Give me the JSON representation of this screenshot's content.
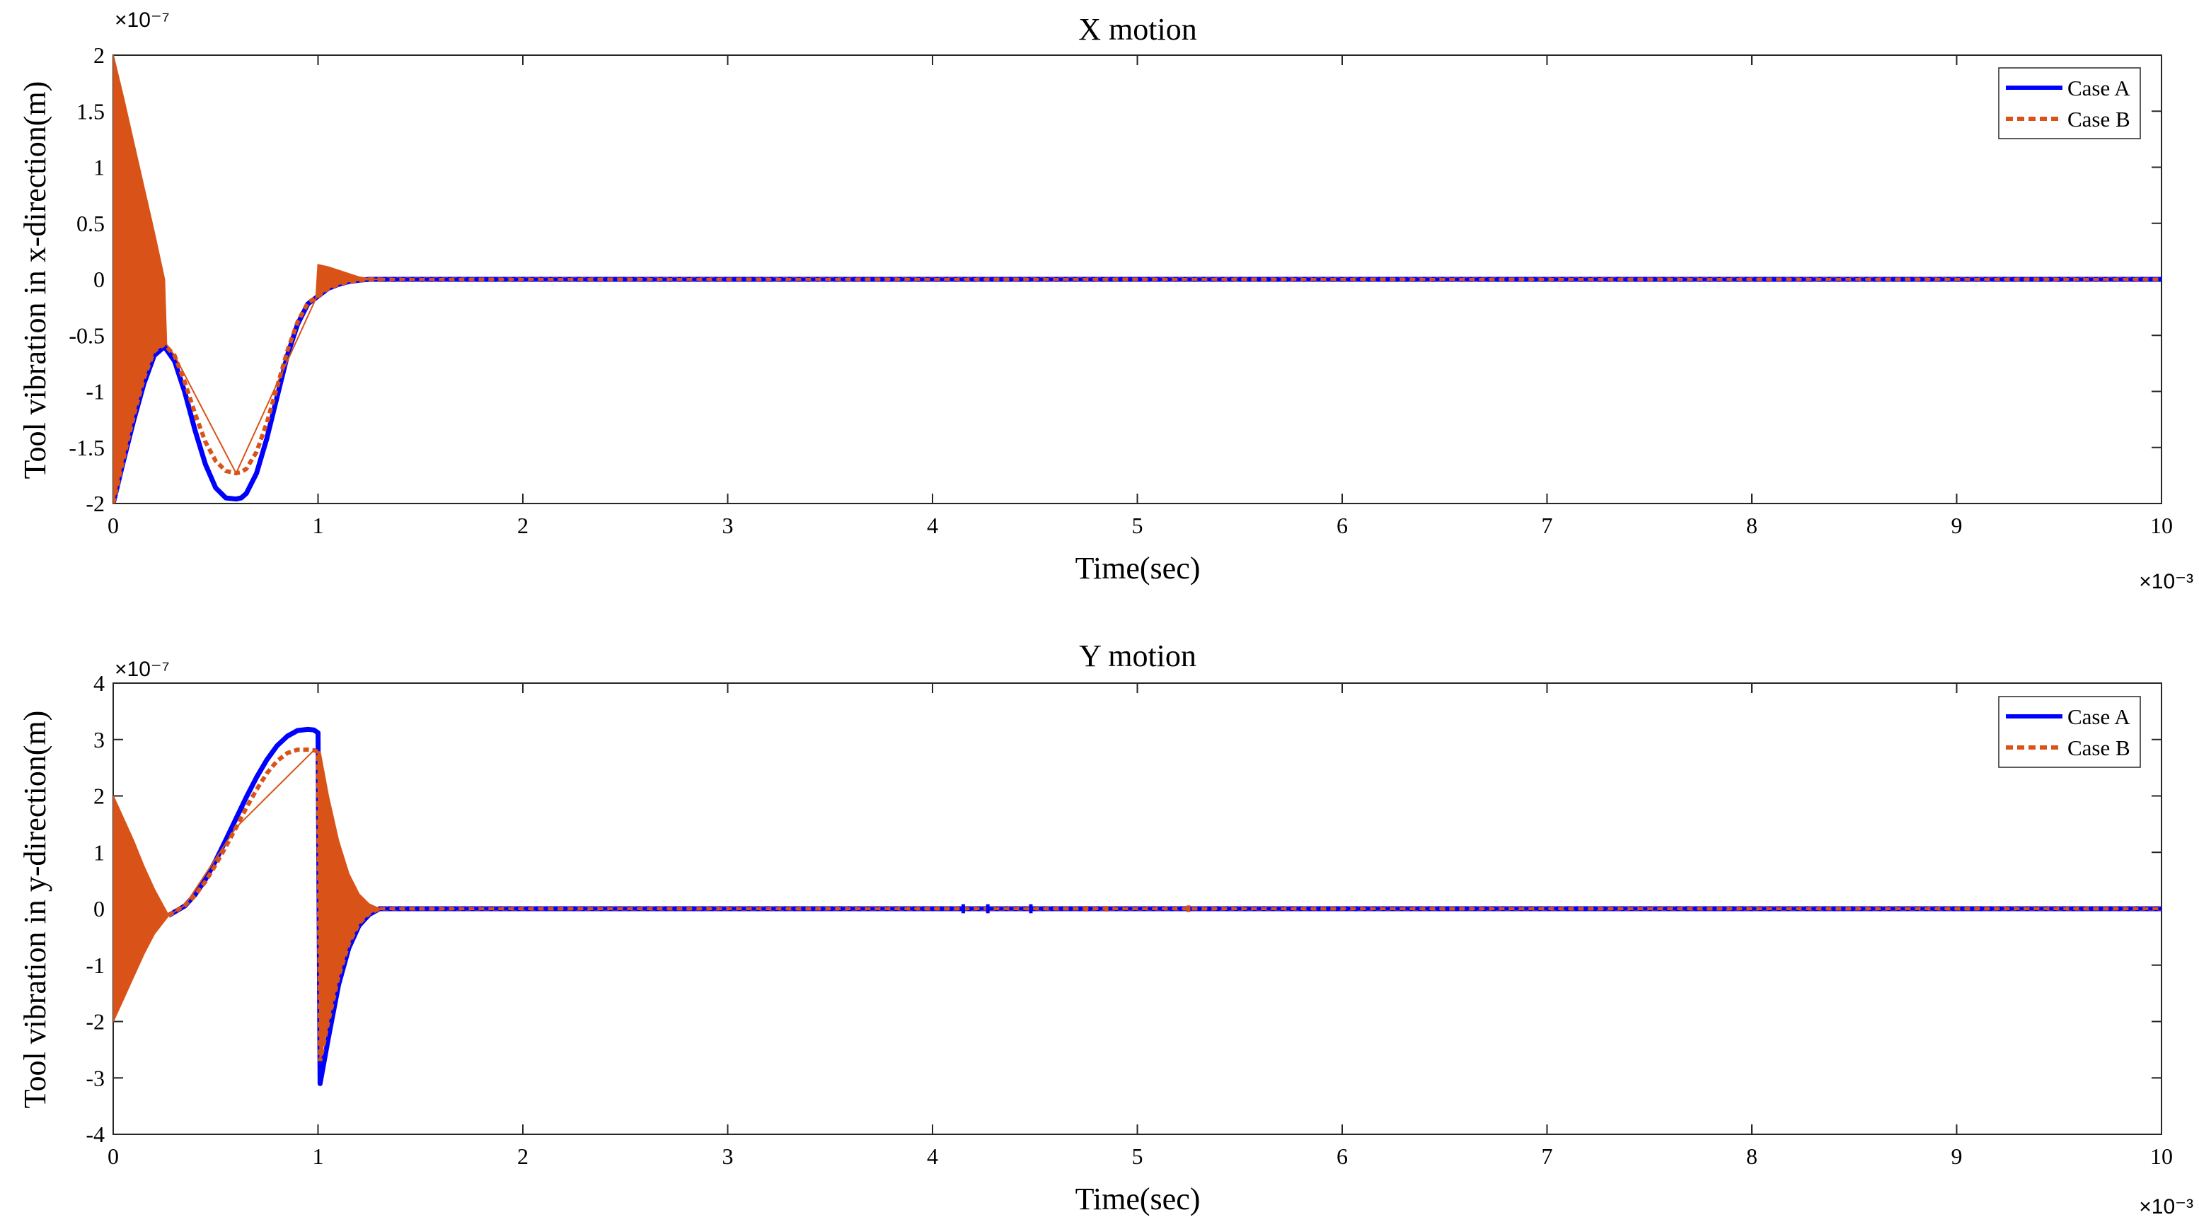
{
  "chart_data": [
    {
      "type": "line",
      "title": "X motion",
      "xlabel": "Time(sec)",
      "ylabel": "Tool vibration in x-direction(m)",
      "x_exponent_label": "×10⁻³",
      "y_exponent_label": "×10⁻⁷",
      "x_scale": 0.001,
      "y_scale": 1e-07,
      "xlim": [
        0,
        10
      ],
      "ylim": [
        -2,
        2
      ],
      "xticks": [
        0,
        1,
        2,
        3,
        4,
        5,
        6,
        7,
        8,
        9,
        10
      ],
      "yticks": [
        -2,
        -1.5,
        -1,
        -0.5,
        0,
        0.5,
        1,
        1.5,
        2
      ],
      "xtick_labels": [
        "0",
        "1",
        "2",
        "3",
        "4",
        "5",
        "6",
        "7",
        "8",
        "9",
        "10"
      ],
      "ytick_labels": [
        "-2",
        "-1.5",
        "-1",
        "-0.5",
        "0",
        "0.5",
        "1",
        "1.5",
        "2"
      ],
      "grid": false,
      "legend_position": "top-right",
      "series": [
        {
          "name": "Case A",
          "color": "#0000ff",
          "style": "solid",
          "x": [
            0,
            0.05,
            0.1,
            0.15,
            0.2,
            0.25,
            0.3,
            0.35,
            0.4,
            0.45,
            0.5,
            0.55,
            0.6,
            0.625,
            0.65,
            0.7,
            0.75,
            0.8,
            0.85,
            0.9,
            0.95,
            1.0,
            1.05,
            1.1,
            1.15,
            1.2,
            1.25,
            1.3,
            2,
            3,
            4,
            5,
            6,
            7,
            8,
            9,
            10
          ],
          "y": [
            -2.0,
            -1.62,
            -1.26,
            -0.93,
            -0.68,
            -0.6,
            -0.73,
            -1.01,
            -1.35,
            -1.65,
            -1.86,
            -1.95,
            -1.96,
            -1.95,
            -1.91,
            -1.73,
            -1.42,
            -1.05,
            -0.68,
            -0.4,
            -0.22,
            -0.15,
            -0.08,
            -0.045,
            -0.02,
            -0.008,
            0.0,
            0.0,
            0.0,
            0.0,
            0.0,
            0.0,
            0.0,
            0.0,
            0.0,
            0.0,
            0.0
          ]
        },
        {
          "name": "Case B",
          "color": "#d95319",
          "style": "dashed",
          "x": [
            0,
            0.05,
            0.1,
            0.15,
            0.2,
            0.25,
            0.3,
            0.35,
            0.4,
            0.45,
            0.5,
            0.55,
            0.6,
            0.625,
            0.65,
            0.7,
            0.75,
            0.8,
            0.85,
            0.9,
            0.95,
            1.0,
            1.05,
            1.1,
            1.15,
            1.2,
            1.25,
            1.3,
            2,
            3,
            4,
            5,
            6,
            7,
            8,
            9,
            10
          ],
          "y": [
            -2.0,
            -1.6,
            -1.22,
            -0.88,
            -0.64,
            -0.58,
            -0.68,
            -0.92,
            -1.2,
            -1.45,
            -1.62,
            -1.71,
            -1.73,
            -1.72,
            -1.69,
            -1.54,
            -1.28,
            -0.96,
            -0.64,
            -0.38,
            -0.21,
            -0.15,
            -0.08,
            -0.045,
            -0.02,
            -0.008,
            0.0,
            0.0,
            0.0,
            0.0,
            0.0,
            0.0,
            0.0,
            0.0,
            0.0,
            0.0,
            0.0
          ]
        }
      ],
      "oscillation_band": {
        "series": "Case B",
        "color": "#d95319",
        "x": [
          0,
          0.05,
          0.1,
          0.15,
          0.2,
          0.25,
          0.26,
          0.3,
          0.6,
          0.99,
          1.0,
          1.05,
          1.1,
          1.15,
          1.2,
          1.25,
          1.3
        ],
        "upper": [
          2.0,
          1.62,
          1.22,
          0.82,
          0.42,
          0.0,
          -0.58,
          -0.68,
          -1.73,
          -0.17,
          0.13,
          0.11,
          0.08,
          0.05,
          0.02,
          0.004,
          0.0
        ],
        "lower": [
          -2.0,
          -1.6,
          -1.22,
          -0.88,
          -0.64,
          -0.58,
          -0.58,
          -0.68,
          -1.73,
          -0.17,
          -0.15,
          -0.08,
          -0.045,
          -0.02,
          -0.008,
          -0.002,
          0.0
        ]
      }
    },
    {
      "type": "line",
      "title": "Y motion",
      "xlabel": "Time(sec)",
      "ylabel": "Tool vibration in y-direction(m)",
      "x_exponent_label": "×10⁻³",
      "y_exponent_label": "×10⁻⁷",
      "x_scale": 0.001,
      "y_scale": 1e-07,
      "xlim": [
        0,
        10
      ],
      "ylim": [
        -4,
        4
      ],
      "xticks": [
        0,
        1,
        2,
        3,
        4,
        5,
        6,
        7,
        8,
        9,
        10
      ],
      "yticks": [
        -4,
        -3,
        -2,
        -1,
        0,
        1,
        2,
        3,
        4
      ],
      "xtick_labels": [
        "0",
        "1",
        "2",
        "3",
        "4",
        "5",
        "6",
        "7",
        "8",
        "9",
        "10"
      ],
      "ytick_labels": [
        "-4",
        "-3",
        "-2",
        "-1",
        "0",
        "1",
        "2",
        "3",
        "4"
      ],
      "grid": false,
      "legend_position": "top-right",
      "series": [
        {
          "name": "Case A",
          "color": "#0000ff",
          "style": "solid",
          "x": [
            0.27,
            0.35,
            0.4,
            0.45,
            0.5,
            0.55,
            0.6,
            0.65,
            0.7,
            0.75,
            0.8,
            0.85,
            0.9,
            0.95,
            0.98,
            1.0,
            1.01,
            1.05,
            1.1,
            1.15,
            1.2,
            1.25,
            1.3,
            2,
            3,
            4,
            5,
            6,
            7,
            8,
            9,
            10
          ],
          "y": [
            -0.12,
            0.05,
            0.25,
            0.52,
            0.85,
            1.22,
            1.6,
            1.98,
            2.33,
            2.64,
            2.89,
            3.06,
            3.16,
            3.18,
            3.17,
            3.12,
            -3.1,
            -2.3,
            -1.35,
            -0.7,
            -0.3,
            -0.1,
            0.0,
            0.0,
            0.0,
            0.0,
            0.0,
            0.0,
            0.0,
            0.0,
            0.0,
            0.0
          ]
        },
        {
          "name": "Case B",
          "color": "#d95319",
          "style": "dashed",
          "x": [
            0.27,
            0.35,
            0.4,
            0.45,
            0.5,
            0.55,
            0.6,
            0.65,
            0.7,
            0.75,
            0.8,
            0.85,
            0.9,
            0.95,
            0.98,
            1.0,
            1.01,
            1.05,
            1.1,
            1.15,
            1.2,
            1.25,
            1.3,
            2,
            3,
            4,
            5,
            6,
            7,
            8,
            9,
            10
          ],
          "y": [
            -0.12,
            0.06,
            0.24,
            0.48,
            0.78,
            1.1,
            1.44,
            1.79,
            2.11,
            2.4,
            2.62,
            2.76,
            2.82,
            2.82,
            2.81,
            2.78,
            -2.7,
            -2.0,
            -1.2,
            -0.62,
            -0.26,
            -0.08,
            0.0,
            0.0,
            0.0,
            0.0,
            0.0,
            0.0,
            0.0,
            0.0,
            0.0,
            0.0
          ]
        }
      ],
      "oscillation_band": {
        "series": "Case B",
        "color": "#d95319",
        "x": [
          0,
          0.05,
          0.1,
          0.15,
          0.2,
          0.27,
          0.35,
          0.6,
          0.98,
          1.0,
          1.01,
          1.05,
          1.1,
          1.15,
          1.2,
          1.25,
          1.3
        ],
        "upper": [
          2.0,
          1.6,
          1.2,
          0.75,
          0.35,
          -0.12,
          0.06,
          1.44,
          2.81,
          2.78,
          2.78,
          2.0,
          1.2,
          0.62,
          0.26,
          0.08,
          0.0
        ],
        "lower": [
          -2.0,
          -1.6,
          -1.2,
          -0.8,
          -0.45,
          -0.12,
          0.06,
          1.44,
          2.81,
          2.78,
          -2.7,
          -2.0,
          -1.2,
          -0.62,
          -0.26,
          -0.08,
          0.0
        ]
      },
      "spikes": [
        {
          "x": 4.15,
          "amplitude": 0.08,
          "color": "#0000ff"
        },
        {
          "x": 4.27,
          "amplitude": 0.08,
          "color": "#0000ff"
        },
        {
          "x": 4.48,
          "amplitude": 0.08,
          "color": "#0000ff"
        },
        {
          "x": 4.75,
          "amplitude": 0.05,
          "color": "#d95319"
        },
        {
          "x": 4.85,
          "amplitude": 0.05,
          "color": "#d95319"
        },
        {
          "x": 5.25,
          "amplitude": 0.06,
          "color": "#d95319"
        }
      ]
    }
  ]
}
